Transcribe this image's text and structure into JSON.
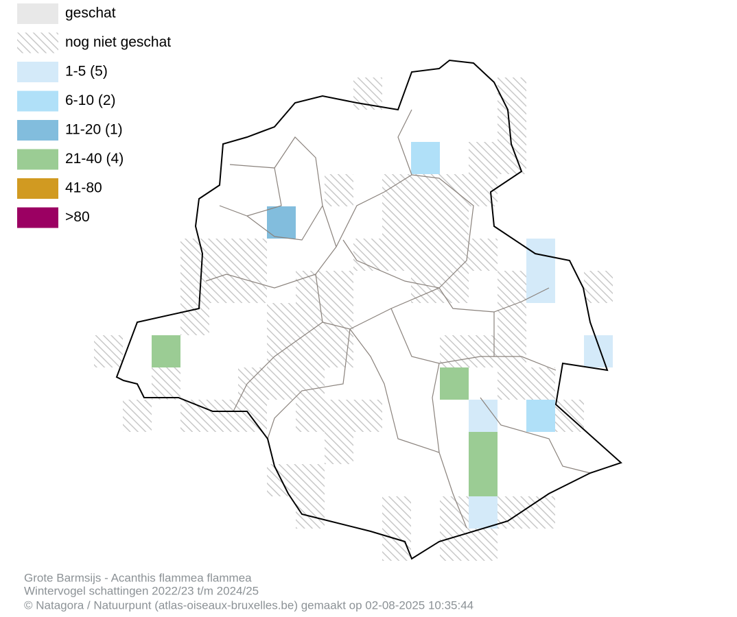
{
  "legend": [
    {
      "label": "geschat",
      "color": "#e8e8e8"
    },
    {
      "label": "nog niet geschat",
      "color": "hatch"
    },
    {
      "label": "1-5 (5)",
      "color": "#d4eaf9"
    },
    {
      "label": "6-10 (2)",
      "color": "#b0e0f8"
    },
    {
      "label": "11-20 (1)",
      "color": "#82bddd"
    },
    {
      "label": "21-40 (4)",
      "color": "#9bcc94"
    },
    {
      "label": "41-80",
      "color": "#d19a21"
    },
    {
      "label": ">80",
      "color": "#9b0062"
    }
  ],
  "footer": {
    "species": "Grote Barmsijs - Acanthis flammea flammea",
    "period": "Wintervogel schattingen 2022/23 t/m 2024/25",
    "credit": "© Natagora / Natuurpunt (atlas-oiseaux-bruxelles.be) gemaakt op 02-08-2025 10:35:44"
  }
}
